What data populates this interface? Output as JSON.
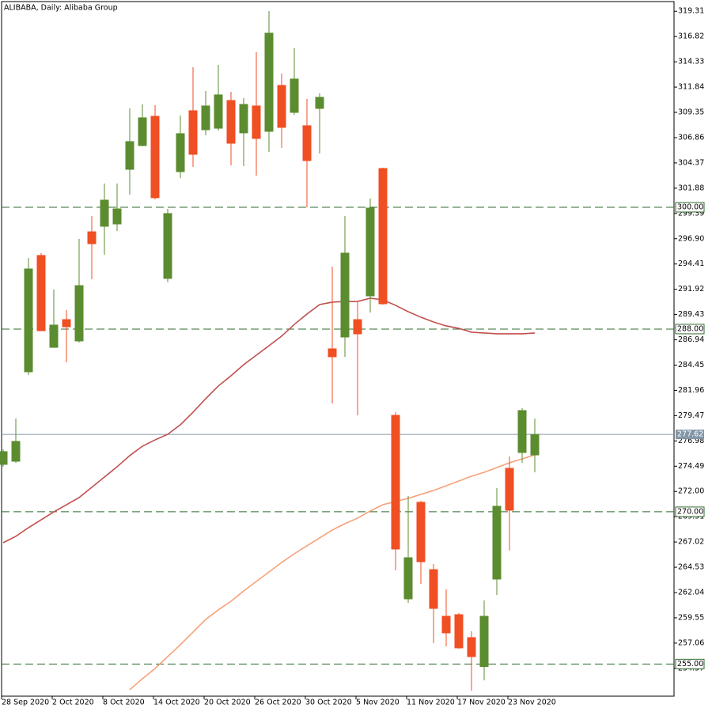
{
  "chart_data": {
    "type": "candlestick",
    "title": "ALIBABA, Daily:  Alibaba Group",
    "categories": [
      "28 Sep 2020",
      null,
      null,
      null,
      "2 Oct 2020",
      null,
      null,
      null,
      "8 Oct 2020",
      null,
      null,
      null,
      "14 Oct 2020",
      null,
      null,
      null,
      "20 Oct 2020",
      null,
      null,
      null,
      "26 Oct 2020",
      null,
      null,
      null,
      "30 Oct 2020",
      null,
      null,
      null,
      "5 Nov 2020",
      null,
      null,
      null,
      "11 Nov 2020",
      null,
      null,
      null,
      "17 Nov 2020",
      null,
      null,
      null,
      "23 Nov 2020",
      null,
      null
    ],
    "open": [
      274.67,
      274.98,
      283.79,
      295.25,
      286.2,
      288.93,
      286.83,
      297.58,
      298.13,
      298.36,
      303.74,
      306.08,
      308.96,
      292.99,
      303.51,
      309.51,
      307.64,
      307.79,
      310.52,
      307.33,
      309.98,
      307.48,
      312.0,
      309.35,
      308.03,
      309.74,
      286.05,
      287.22,
      288.93,
      291.27,
      303.82,
      279.5,
      261.42,
      270.93,
      264.3,
      259.7,
      259.86,
      257.6,
      254.75,
      263.37,
      274.28,
      275.84,
      275.6
    ],
    "high": [
      276.15,
      279.19,
      295.01,
      295.48,
      291.89,
      289.87,
      296.88,
      299.14,
      302.34,
      302.34,
      309.74,
      310.13,
      310.05,
      299.84,
      309.04,
      313.8,
      311.46,
      314.03,
      311.38,
      310.76,
      315.28,
      319.33,
      313.17,
      315.67,
      310.68,
      311.22,
      294.15,
      299.14,
      290.65,
      300.86,
      303.9,
      279.81,
      271.55,
      271.08,
      264.85,
      262.35,
      260.02,
      258.22,
      261.26,
      272.33,
      275.45,
      280.2,
      279.19
    ],
    "low": [
      274.44,
      274.82,
      283.48,
      287.8,
      286.15,
      284.72,
      286.67,
      292.91,
      295.32,
      297.66,
      301.25,
      306.0,
      300.78,
      292.6,
      302.88,
      303.98,
      307.09,
      307.56,
      304.13,
      304.05,
      303.12,
      305.46,
      305.85,
      309.12,
      300.0,
      305.3,
      280.67,
      285.27,
      279.5,
      289.63,
      290.41,
      264.22,
      261.03,
      262.9,
      257.05,
      256.74,
      256.51,
      252.38,
      253.39,
      261.81,
      266.17,
      274.82,
      273.89
    ],
    "close": [
      275.92,
      276.93,
      293.92,
      287.84,
      288.39,
      288.23,
      292.28,
      296.41,
      300.7,
      299.84,
      306.47,
      308.81,
      300.94,
      299.38,
      307.25,
      305.22,
      309.98,
      311.07,
      306.31,
      310.13,
      306.78,
      317.15,
      307.87,
      312.63,
      304.6,
      310.83,
      285.27,
      295.48,
      287.53,
      299.92,
      290.49,
      266.33,
      265.47,
      265.08,
      260.48,
      258.07,
      256.59,
      255.73,
      259.7,
      270.54,
      270.15,
      279.97,
      277.62
    ],
    "up_color": "#5b8c2f",
    "down_color": "#f04e23",
    "lines": [
      {
        "color": "#c0504d",
        "values": [
          266.95,
          267.58,
          268.43,
          269.21,
          269.99,
          270.69,
          271.4,
          272.41,
          273.42,
          274.43,
          275.53,
          276.46,
          277.08,
          277.63,
          278.57,
          279.81,
          281.14,
          282.39,
          283.4,
          284.49,
          285.42,
          286.36,
          287.3,
          288.46,
          289.48,
          290.41,
          290.65,
          290.72,
          290.72,
          291.04,
          290.88,
          290.34,
          289.71,
          289.17,
          288.7,
          288.31,
          288.07,
          287.69,
          287.61,
          287.53,
          287.53,
          287.53,
          287.61
        ]
      },
      {
        "color": "#f5a27a",
        "values": [
          null,
          null,
          null,
          null,
          null,
          null,
          null,
          null,
          null,
          null,
          252.46,
          253.55,
          254.56,
          255.73,
          256.9,
          258.14,
          259.39,
          260.33,
          261.18,
          262.2,
          263.13,
          264.07,
          265.0,
          265.86,
          266.64,
          267.42,
          268.2,
          268.82,
          269.37,
          270.07,
          270.69,
          271.01,
          271.32,
          271.71,
          272.1,
          272.56,
          273.03,
          273.5,
          273.89,
          274.36,
          274.82,
          275.21,
          275.6
        ]
      }
    ],
    "levels": [
      {
        "value": 300,
        "label": "300.00"
      },
      {
        "value": 288,
        "label": "288.00"
      },
      {
        "value": 270,
        "label": "270.00"
      },
      {
        "value": 255,
        "label": "255.00"
      }
    ],
    "level_color": "#2f6b2f",
    "last_price": 277.62,
    "last_price_color": "#8496a8",
    "ylim": [
      251.83,
      320.42
    ],
    "yticks": [
      319.31,
      316.82,
      314.33,
      311.84,
      309.35,
      306.86,
      304.37,
      301.88,
      299.39,
      {
        "value": 296.9,
        "label": "296.90"
      },
      294.41,
      291.92,
      289.43,
      286.94,
      284.45,
      281.96,
      279.47,
      276.98,
      274.49,
      {
        "value": 272,
        "label": "272.00"
      },
      269.51,
      267.02,
      264.53,
      262.04,
      259.55,
      257.06,
      254.57
    ]
  }
}
